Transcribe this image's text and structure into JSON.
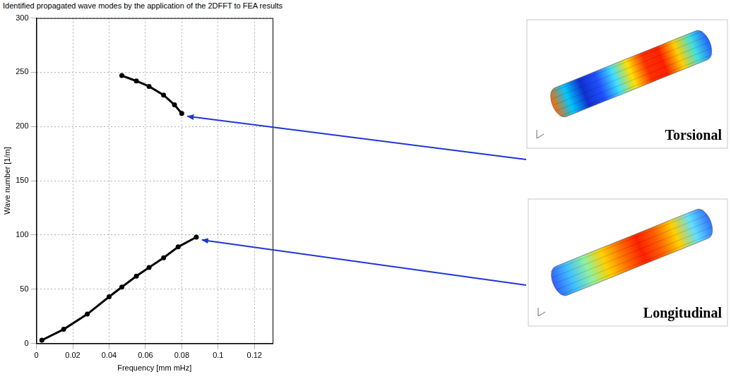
{
  "chart_data": {
    "type": "line",
    "title": "Identified propagated wave modes by the application of the 2DFFT to FEA results",
    "x_label": "Frequency [mm mHz]",
    "y_label": "Wave number [1/m]",
    "xlim": [
      0,
      0.13
    ],
    "xticks": [
      0,
      0.02,
      0.04,
      0.06,
      0.08,
      0.1,
      0.12
    ],
    "ylim": [
      0,
      300
    ],
    "yticks": [
      0,
      50,
      100,
      150,
      200,
      250,
      300
    ],
    "grid": true,
    "series": [
      {
        "name": "Torsional",
        "color": "#000000",
        "x": [
          0.047,
          0.055,
          0.062,
          0.07,
          0.076,
          0.08
        ],
        "values": [
          247,
          242,
          237,
          229,
          220,
          212
        ]
      },
      {
        "name": "Longitudinal",
        "color": "#000000",
        "x": [
          0.003,
          0.015,
          0.028,
          0.04,
          0.047,
          0.055,
          0.062,
          0.07,
          0.078,
          0.088
        ],
        "values": [
          3,
          13,
          27,
          43,
          52,
          62,
          70,
          79,
          89,
          98
        ]
      }
    ]
  }
}
